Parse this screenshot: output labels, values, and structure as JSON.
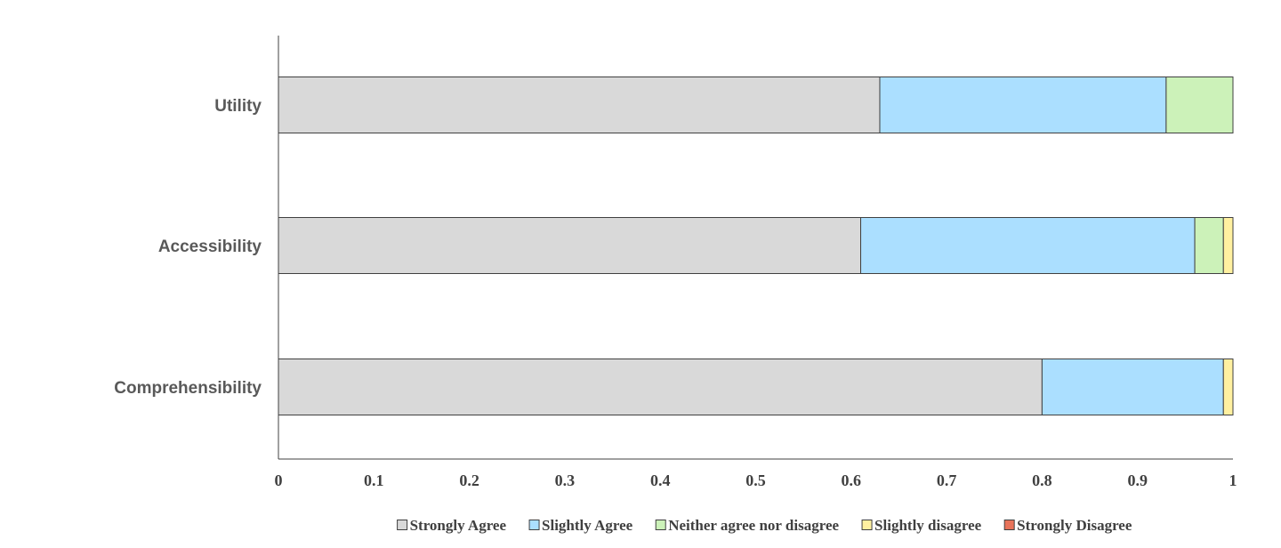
{
  "chart_data": {
    "type": "bar",
    "orientation": "horizontal",
    "stacked": true,
    "categories": [
      "Utility",
      "Accessibility",
      "Comprehensibility"
    ],
    "series": [
      {
        "name": "Strongly Agree",
        "color": "#d9d9d9",
        "values": [
          0.63,
          0.61,
          0.8
        ]
      },
      {
        "name": "Slightly Agree",
        "color": "#abdfff",
        "values": [
          0.3,
          0.35,
          0.19
        ]
      },
      {
        "name": "Neither agree nor disagree",
        "color": "#ccf2b9",
        "values": [
          0.07,
          0.03,
          0.0
        ]
      },
      {
        "name": "Slightly disagree",
        "color": "#fff0a0",
        "values": [
          0.0,
          0.01,
          0.01
        ]
      },
      {
        "name": "Strongly Disagree",
        "color": "#e8735a",
        "values": [
          0.0,
          0.0,
          0.0
        ]
      }
    ],
    "xlim": [
      0,
      1
    ],
    "xticks": [
      "0",
      "0.1",
      "0.2",
      "0.3",
      "0.4",
      "0.5",
      "0.6",
      "0.7",
      "0.8",
      "0.9",
      "1"
    ],
    "grid": false,
    "legend": "bottom",
    "title": "",
    "xlabel": "",
    "ylabel": ""
  }
}
